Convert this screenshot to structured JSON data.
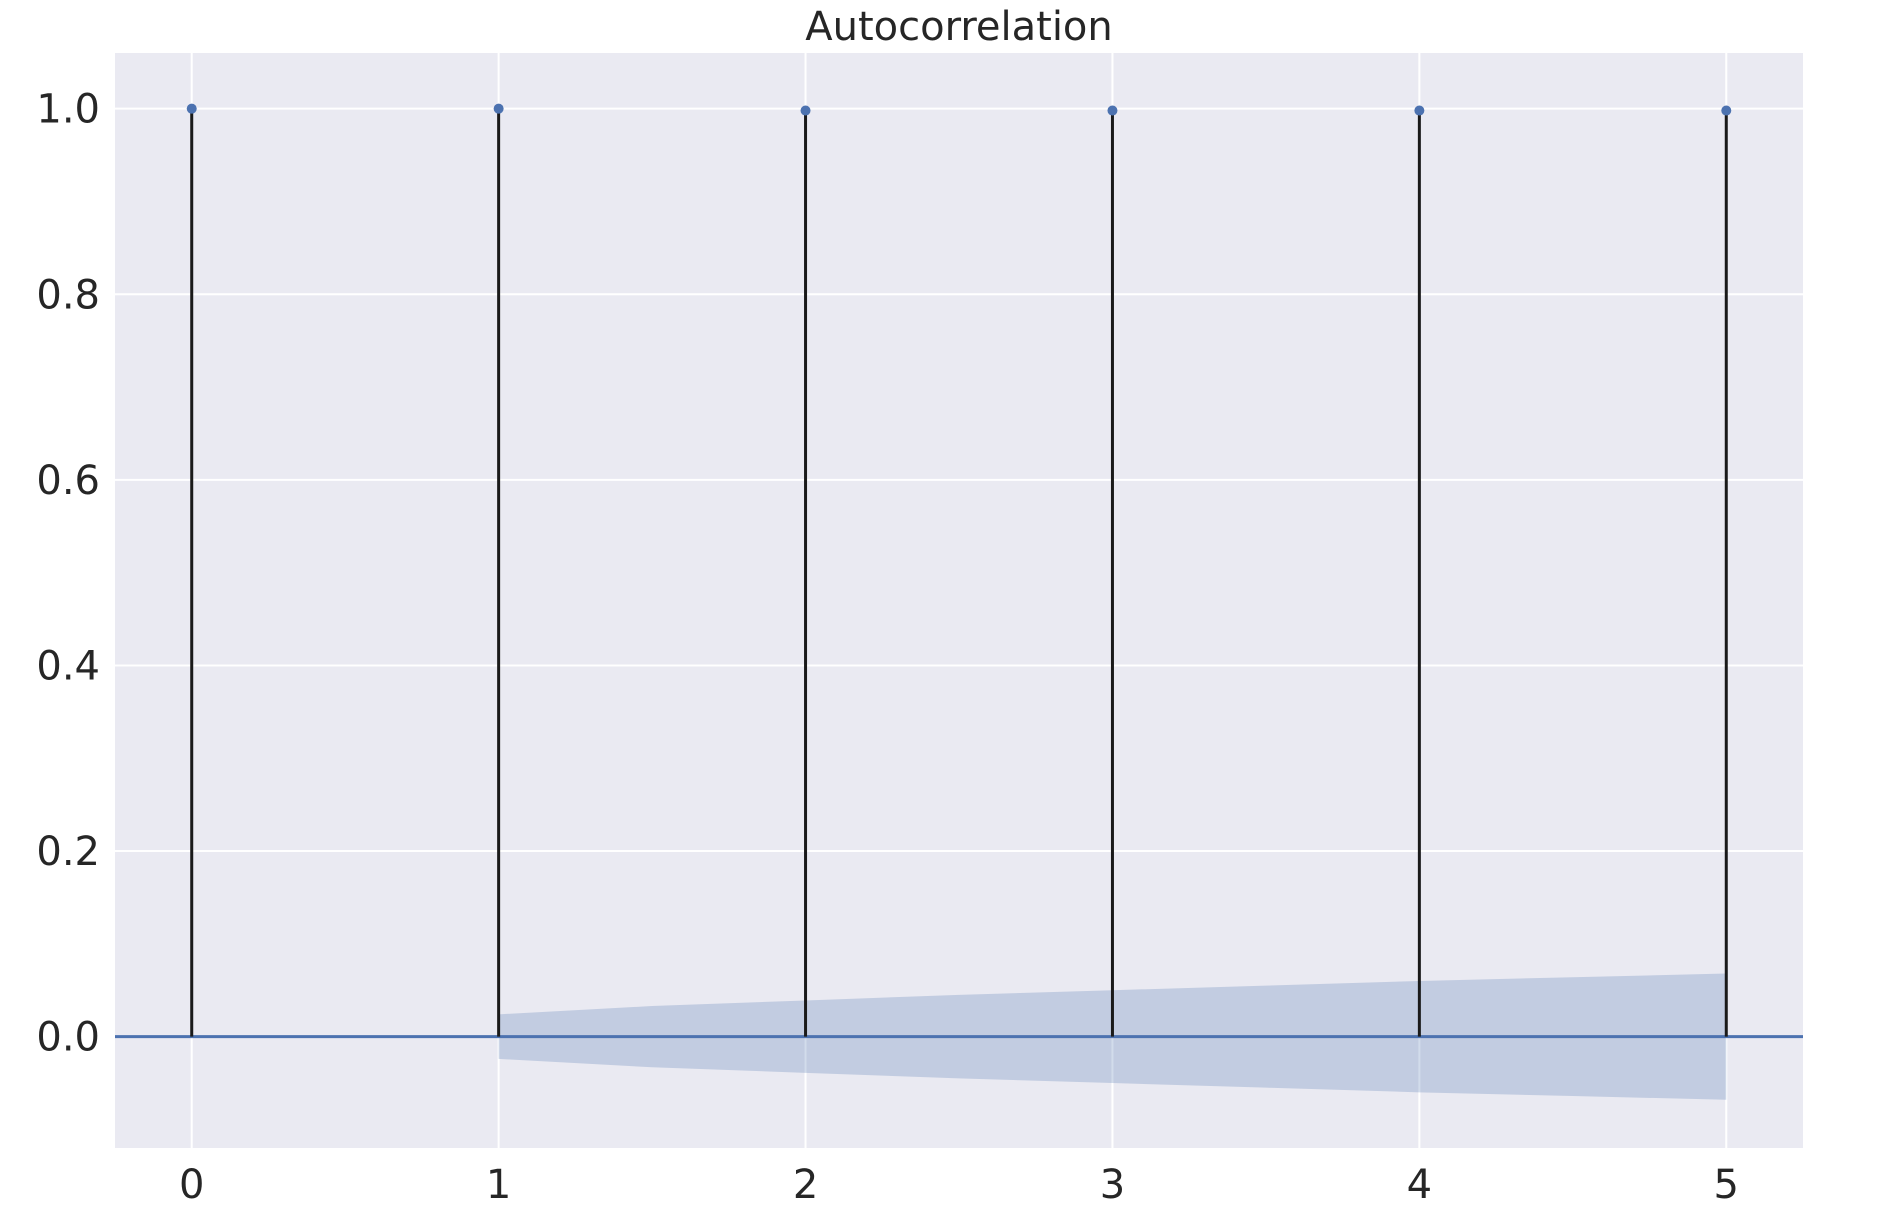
{
  "chart_data": {
    "type": "stem",
    "title": "Autocorrelation",
    "xlabel": "",
    "ylabel": "",
    "x": [
      0,
      1,
      2,
      3,
      4,
      5
    ],
    "values": [
      1.0,
      1.0,
      0.998,
      0.998,
      0.998,
      0.998
    ],
    "confidence_band": {
      "x": [
        1,
        1.5,
        2,
        2.5,
        3,
        3.5,
        4,
        4.5,
        5
      ],
      "upper": [
        0.024,
        0.033,
        0.039,
        0.045,
        0.05,
        0.055,
        0.06,
        0.064,
        0.068
      ],
      "lower": [
        -0.024,
        -0.033,
        -0.039,
        -0.045,
        -0.05,
        -0.055,
        -0.06,
        -0.064,
        -0.068
      ]
    },
    "xlim": [
      -0.25,
      5.25
    ],
    "ylim": [
      -0.12,
      1.06
    ],
    "xticks": [
      "0",
      "1",
      "2",
      "3",
      "4",
      "5"
    ],
    "xtick_values": [
      0,
      1,
      2,
      3,
      4,
      5
    ],
    "yticks": [
      "0.0",
      "0.2",
      "0.4",
      "0.6",
      "0.8",
      "1.0"
    ],
    "ytick_values": [
      0,
      0.2,
      0.4,
      0.6,
      0.8,
      1.0
    ],
    "grid": true,
    "colors": {
      "background": "#EAEAF2",
      "grid": "#FFFFFF",
      "stem": "#1a1a1a",
      "marker": "#4C72B0",
      "zero_line": "#4C72B0",
      "band": "#4C72B0"
    }
  }
}
